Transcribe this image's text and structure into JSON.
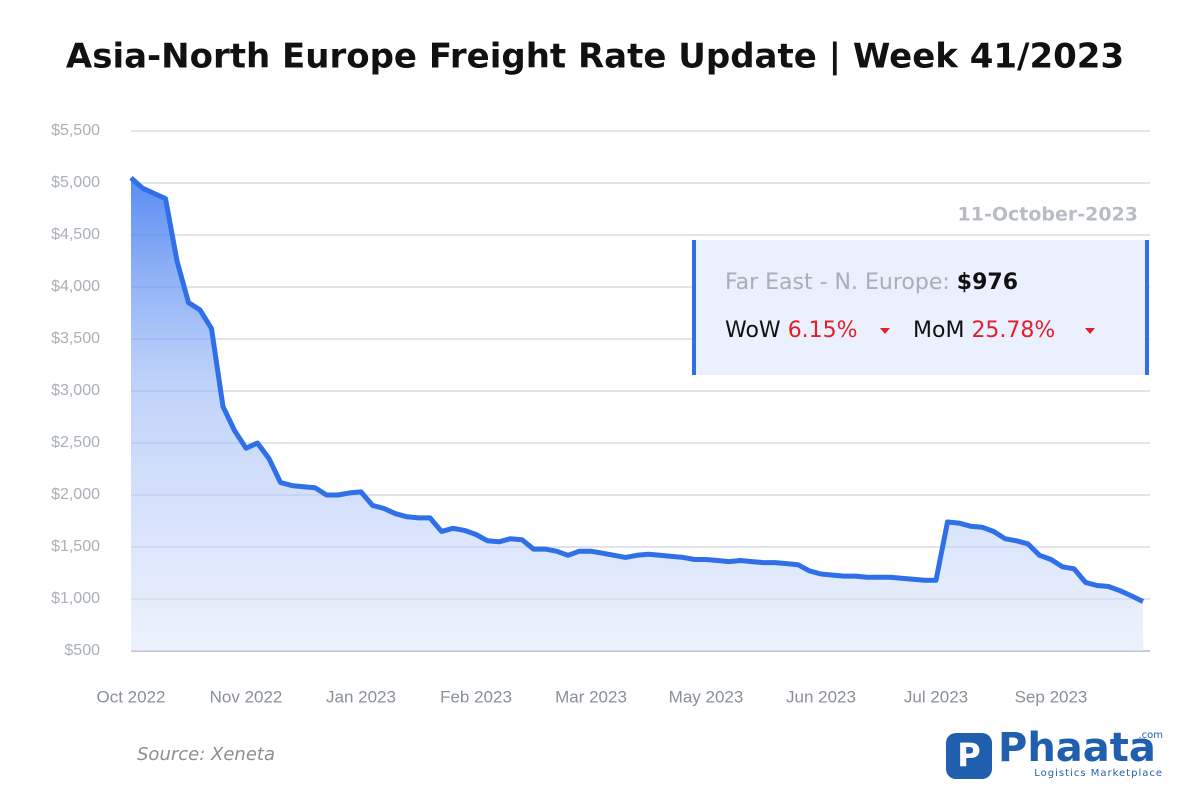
{
  "chart_data": {
    "type": "area",
    "title": "Asia-North Europe Freight Rate Update | Week 41/2023",
    "categories": [
      "Oct 2022",
      null,
      null,
      null,
      null,
      null,
      null,
      null,
      null,
      null,
      "Nov 2022",
      null,
      null,
      null,
      null,
      null,
      null,
      null,
      null,
      null,
      "Jan 2023",
      null,
      null,
      null,
      null,
      null,
      null,
      null,
      null,
      null,
      "Feb 2023",
      null,
      null,
      null,
      null,
      null,
      null,
      null,
      null,
      null,
      "Mar 2023",
      null,
      null,
      null,
      null,
      null,
      null,
      null,
      null,
      null,
      "May 2023",
      null,
      null,
      null,
      null,
      null,
      null,
      null,
      null,
      null,
      "Jun 2023",
      null,
      null,
      null,
      null,
      null,
      null,
      null,
      null,
      null,
      "Jul 2023",
      null,
      null,
      null,
      null,
      null,
      null,
      null,
      null,
      null,
      "Sep 2023",
      null,
      null,
      null,
      null,
      null,
      null,
      null,
      null
    ],
    "series": [
      {
        "name": "Far East - N. Europe",
        "color": "#2f6fe8",
        "values": [
          5050,
          4950,
          4900,
          4850,
          4250,
          3850,
          3780,
          3600,
          2850,
          2620,
          2450,
          2500,
          2350,
          2120,
          2090,
          2080,
          2070,
          2000,
          2000,
          2020,
          2030,
          1900,
          1870,
          1820,
          1790,
          1780,
          1780,
          1650,
          1680,
          1660,
          1620,
          1560,
          1550,
          1580,
          1570,
          1480,
          1480,
          1460,
          1420,
          1460,
          1460,
          1440,
          1420,
          1400,
          1420,
          1430,
          1420,
          1410,
          1400,
          1380,
          1380,
          1370,
          1360,
          1370,
          1360,
          1350,
          1350,
          1340,
          1330,
          1270,
          1240,
          1230,
          1220,
          1220,
          1210,
          1210,
          1210,
          1200,
          1190,
          1180,
          1180,
          1740,
          1730,
          1700,
          1690,
          1650,
          1580,
          1560,
          1530,
          1420,
          1380,
          1310,
          1290,
          1160,
          1130,
          1120,
          1080,
          1030,
          976
        ]
      }
    ],
    "ylim": [
      500,
      5500
    ],
    "yticks": [
      {
        "value": 500,
        "label": "$500"
      },
      {
        "value": 1000,
        "label": "$1,000"
      },
      {
        "value": 1500,
        "label": "$1,500"
      },
      {
        "value": 2000,
        "label": "$2,000"
      },
      {
        "value": 2500,
        "label": "$2,500"
      },
      {
        "value": 3000,
        "label": "$3,000"
      },
      {
        "value": 3500,
        "label": "$3,500"
      },
      {
        "value": 4000,
        "label": "$4,000"
      },
      {
        "value": 4500,
        "label": "$4,500"
      },
      {
        "value": 5000,
        "label": "$5,000"
      },
      {
        "value": 5500,
        "label": "$5,500"
      }
    ],
    "grid": true,
    "tooltip": {
      "date": "11-October-2023",
      "label": "Far East - N. Europe:",
      "value": "$976",
      "wow_label": "WoW",
      "wow": "6.15%",
      "mom_label": "MoM",
      "mom": "25.78%"
    },
    "source": "Source: Xeneta"
  },
  "logo": {
    "name": "Phaata",
    "suffix": ".com",
    "tagline": "Logistics Marketplace"
  }
}
